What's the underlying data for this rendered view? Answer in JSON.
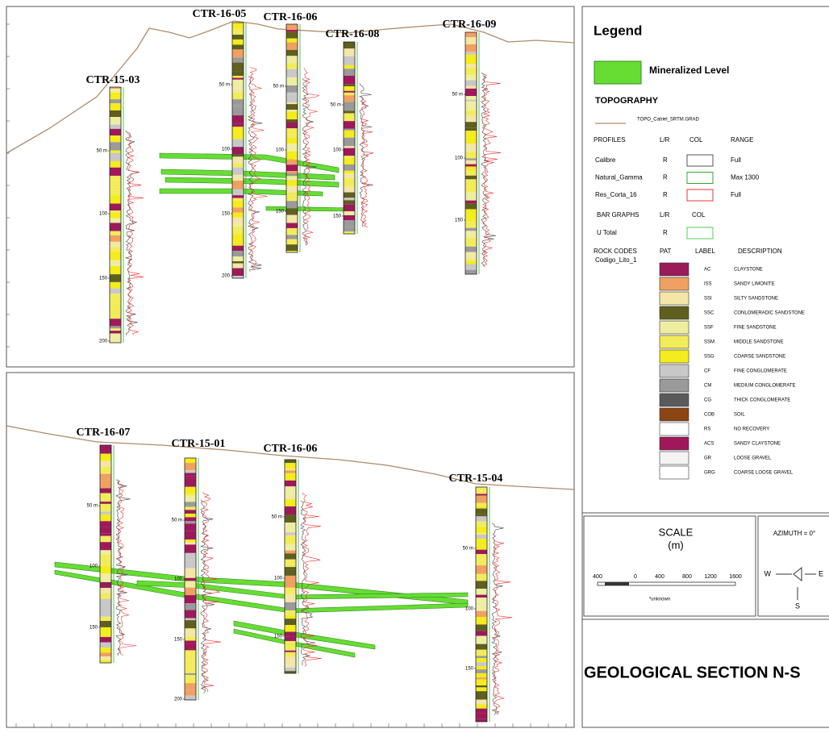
{
  "sections": [
    {
      "wells": [
        {
          "name": "CTR-15-03",
          "depths": [
            "50 m",
            "100",
            "150",
            "200"
          ]
        },
        {
          "name": "CTR-16-05",
          "depths": [
            "50 m",
            "100",
            "150",
            "200"
          ]
        },
        {
          "name": "CTR-16-06",
          "depths": [
            "50 m",
            "100",
            "150"
          ]
        },
        {
          "name": "CTR-16-08",
          "depths": [
            "50 m",
            "100",
            "150"
          ]
        },
        {
          "name": "CTR-16-09",
          "depths": [
            "50 m",
            "100",
            "150"
          ]
        }
      ]
    },
    {
      "wells": [
        {
          "name": "CTR-16-07",
          "depths": [
            "50 m",
            "100",
            "150"
          ]
        },
        {
          "name": "CTR-15-01",
          "depths": [
            "50 m",
            "100",
            "150",
            "200"
          ]
        },
        {
          "name": "CTR-16-06",
          "depths": [
            "50 m",
            "100",
            "150"
          ]
        },
        {
          "name": "CTR-15-04",
          "depths": [
            "50 m",
            "100",
            "150"
          ]
        }
      ]
    }
  ],
  "legend": {
    "title": "Legend",
    "mineralized": "Mineralized Level",
    "topography": {
      "title": "TOPOGRAPHY",
      "item": "TOPO_Catriel_SRTM.GRAD"
    },
    "profiles": {
      "header": [
        "PROFILES",
        "L/R",
        "COL",
        "RANGE"
      ],
      "rows": [
        {
          "name": "Calibre",
          "side": "R",
          "color": "#555555",
          "range": "Full"
        },
        {
          "name": "Natural_Gamma",
          "side": "R",
          "color": "#33aa33",
          "range": "Max 1300"
        },
        {
          "name": "Res_Corta_16",
          "side": "R",
          "color": "#ee3333",
          "range": "Full"
        }
      ]
    },
    "bar_graphs": {
      "header": [
        "BAR GRAPHS",
        "L/R",
        "COL"
      ],
      "rows": [
        {
          "name": "U Total",
          "side": "R",
          "color": "#55cc55"
        }
      ]
    },
    "rock_codes": {
      "header": [
        "ROCK CODES",
        "PAT",
        "LABEL",
        "DESCRIPTION"
      ],
      "field": "Codigo_Lito_1",
      "rows": [
        {
          "label": "AC",
          "description": "CLAYSTONE",
          "color": "#9b1b5a"
        },
        {
          "label": "ISS",
          "description": "SANDY LIMONITE",
          "color": "#f0a060"
        },
        {
          "label": "SSI",
          "description": "SILTY SANDSTONE",
          "color": "#f3e6a6"
        },
        {
          "label": "SSC",
          "description": "CONLOMERADIC SANDSTONE",
          "color": "#5f5f1e"
        },
        {
          "label": "SSF",
          "description": "FINE SANDSTONE",
          "color": "#eeeea0"
        },
        {
          "label": "SSM",
          "description": "MIDDLE SANDSTONE",
          "color": "#f2ec5a"
        },
        {
          "label": "SSG",
          "description": "COARSE SANDSTONE",
          "color": "#f4ec1c"
        },
        {
          "label": "CF",
          "description": "FINE  CONGLOMERATE",
          "color": "#c8c8c8"
        },
        {
          "label": "CM",
          "description": "MEDIUM  CONGLOMERATE",
          "color": "#9a9a9a"
        },
        {
          "label": "CG",
          "description": "THICK  CONGLOMERATE",
          "color": "#5a5a5a"
        },
        {
          "label": "COB",
          "description": "SOIL",
          "color": "#8b4513"
        },
        {
          "label": "RS",
          "description": "NO RECOVERY",
          "color": "#ffffff"
        },
        {
          "label": "ACS",
          "description": "SANDY  CLAYSTONE",
          "color": "#a0185a"
        },
        {
          "label": "GR",
          "description": "LOOSE GRAVEL",
          "color": "#f4f4f4"
        },
        {
          "label": "GRG",
          "description": "COARSE LOOSE GRAVEL",
          "color": "#ffffff"
        }
      ]
    }
  },
  "scale": {
    "title": "SCALE",
    "unit": "(m)",
    "ticks": [
      "400",
      "0",
      "400",
      "800",
      "1200",
      "1600"
    ],
    "note": "*unknown"
  },
  "azimuth": {
    "title": "AZIMUTH = 0°",
    "w": "W",
    "e": "E",
    "s": "S"
  },
  "section_title": "GEOLOGICAL SECTION N-S"
}
